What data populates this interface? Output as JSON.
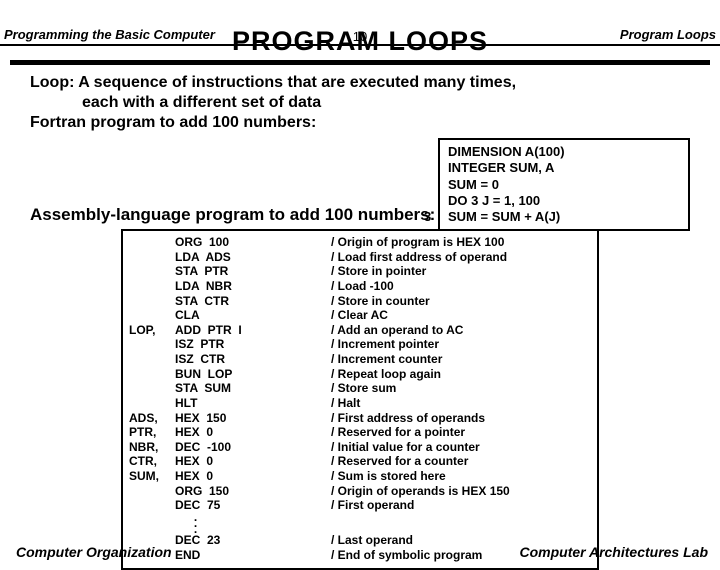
{
  "header": {
    "left": "Programming the Basic Computer",
    "mid": "10",
    "right": "Program Loops"
  },
  "title": "PROGRAM  LOOPS",
  "intro": {
    "l1": "Loop:  A sequence of instructions that are executed many times,",
    "l2": "each with a different set of data",
    "l3": "Fortran program to add 100 numbers:"
  },
  "fortran": {
    "r0": "DIMENSION  A(100)",
    "r1": "INTEGER  SUM,  A",
    "r2": "SUM = 0",
    "r3": "DO  3  J = 1,  100",
    "r4": "SUM = SUM + A(J)",
    "lbl": "3"
  },
  "asm_title": "Assembly-language program to add 100 numbers:",
  "asm": [
    {
      "l": "",
      "o": "ORG  100",
      "c": "/ Origin of program is HEX 100"
    },
    {
      "l": "",
      "o": "LDA  ADS",
      "c": "/ Load first address of operand"
    },
    {
      "l": "",
      "o": "STA  PTR",
      "c": "/ Store in pointer"
    },
    {
      "l": "",
      "o": "LDA  NBR",
      "c": "/ Load -100"
    },
    {
      "l": "",
      "o": "STA  CTR",
      "c": "/ Store in counter"
    },
    {
      "l": "",
      "o": "CLA",
      "c": "/ Clear AC"
    },
    {
      "l": "LOP,",
      "o": "ADD  PTR  I",
      "c": "/ Add an operand to AC"
    },
    {
      "l": "",
      "o": "ISZ  PTR",
      "c": "/ Increment pointer"
    },
    {
      "l": "",
      "o": "ISZ  CTR",
      "c": "/ Increment counter"
    },
    {
      "l": "",
      "o": "BUN  LOP",
      "c": "/ Repeat loop again"
    },
    {
      "l": "",
      "o": "STA  SUM",
      "c": "/ Store sum"
    },
    {
      "l": "",
      "o": "HLT",
      "c": "/ Halt"
    },
    {
      "l": "ADS,",
      "o": "HEX  150",
      "c": "/ First address of operands"
    },
    {
      "l": "PTR,",
      "o": "HEX  0",
      "c": "/ Reserved for a pointer"
    },
    {
      "l": "NBR,",
      "o": "DEC  -100",
      "c": "/ Initial value for a counter"
    },
    {
      "l": "CTR,",
      "o": "HEX  0",
      "c": "/ Reserved for a counter"
    },
    {
      "l": "SUM,",
      "o": "HEX  0",
      "c": "/ Sum is stored here"
    },
    {
      "l": "",
      "o": "ORG  150",
      "c": "/ Origin of operands is HEX 150"
    },
    {
      "l": "",
      "o": "DEC  75",
      "c": "/ First operand"
    }
  ],
  "asm_tail": [
    {
      "l": "",
      "o": "DEC  23",
      "c": "/ Last operand"
    },
    {
      "l": "",
      "o": "END",
      "c": "/ End of symbolic program"
    }
  ],
  "footer": {
    "left": "Computer Organization",
    "right": "Computer Architectures Lab"
  }
}
